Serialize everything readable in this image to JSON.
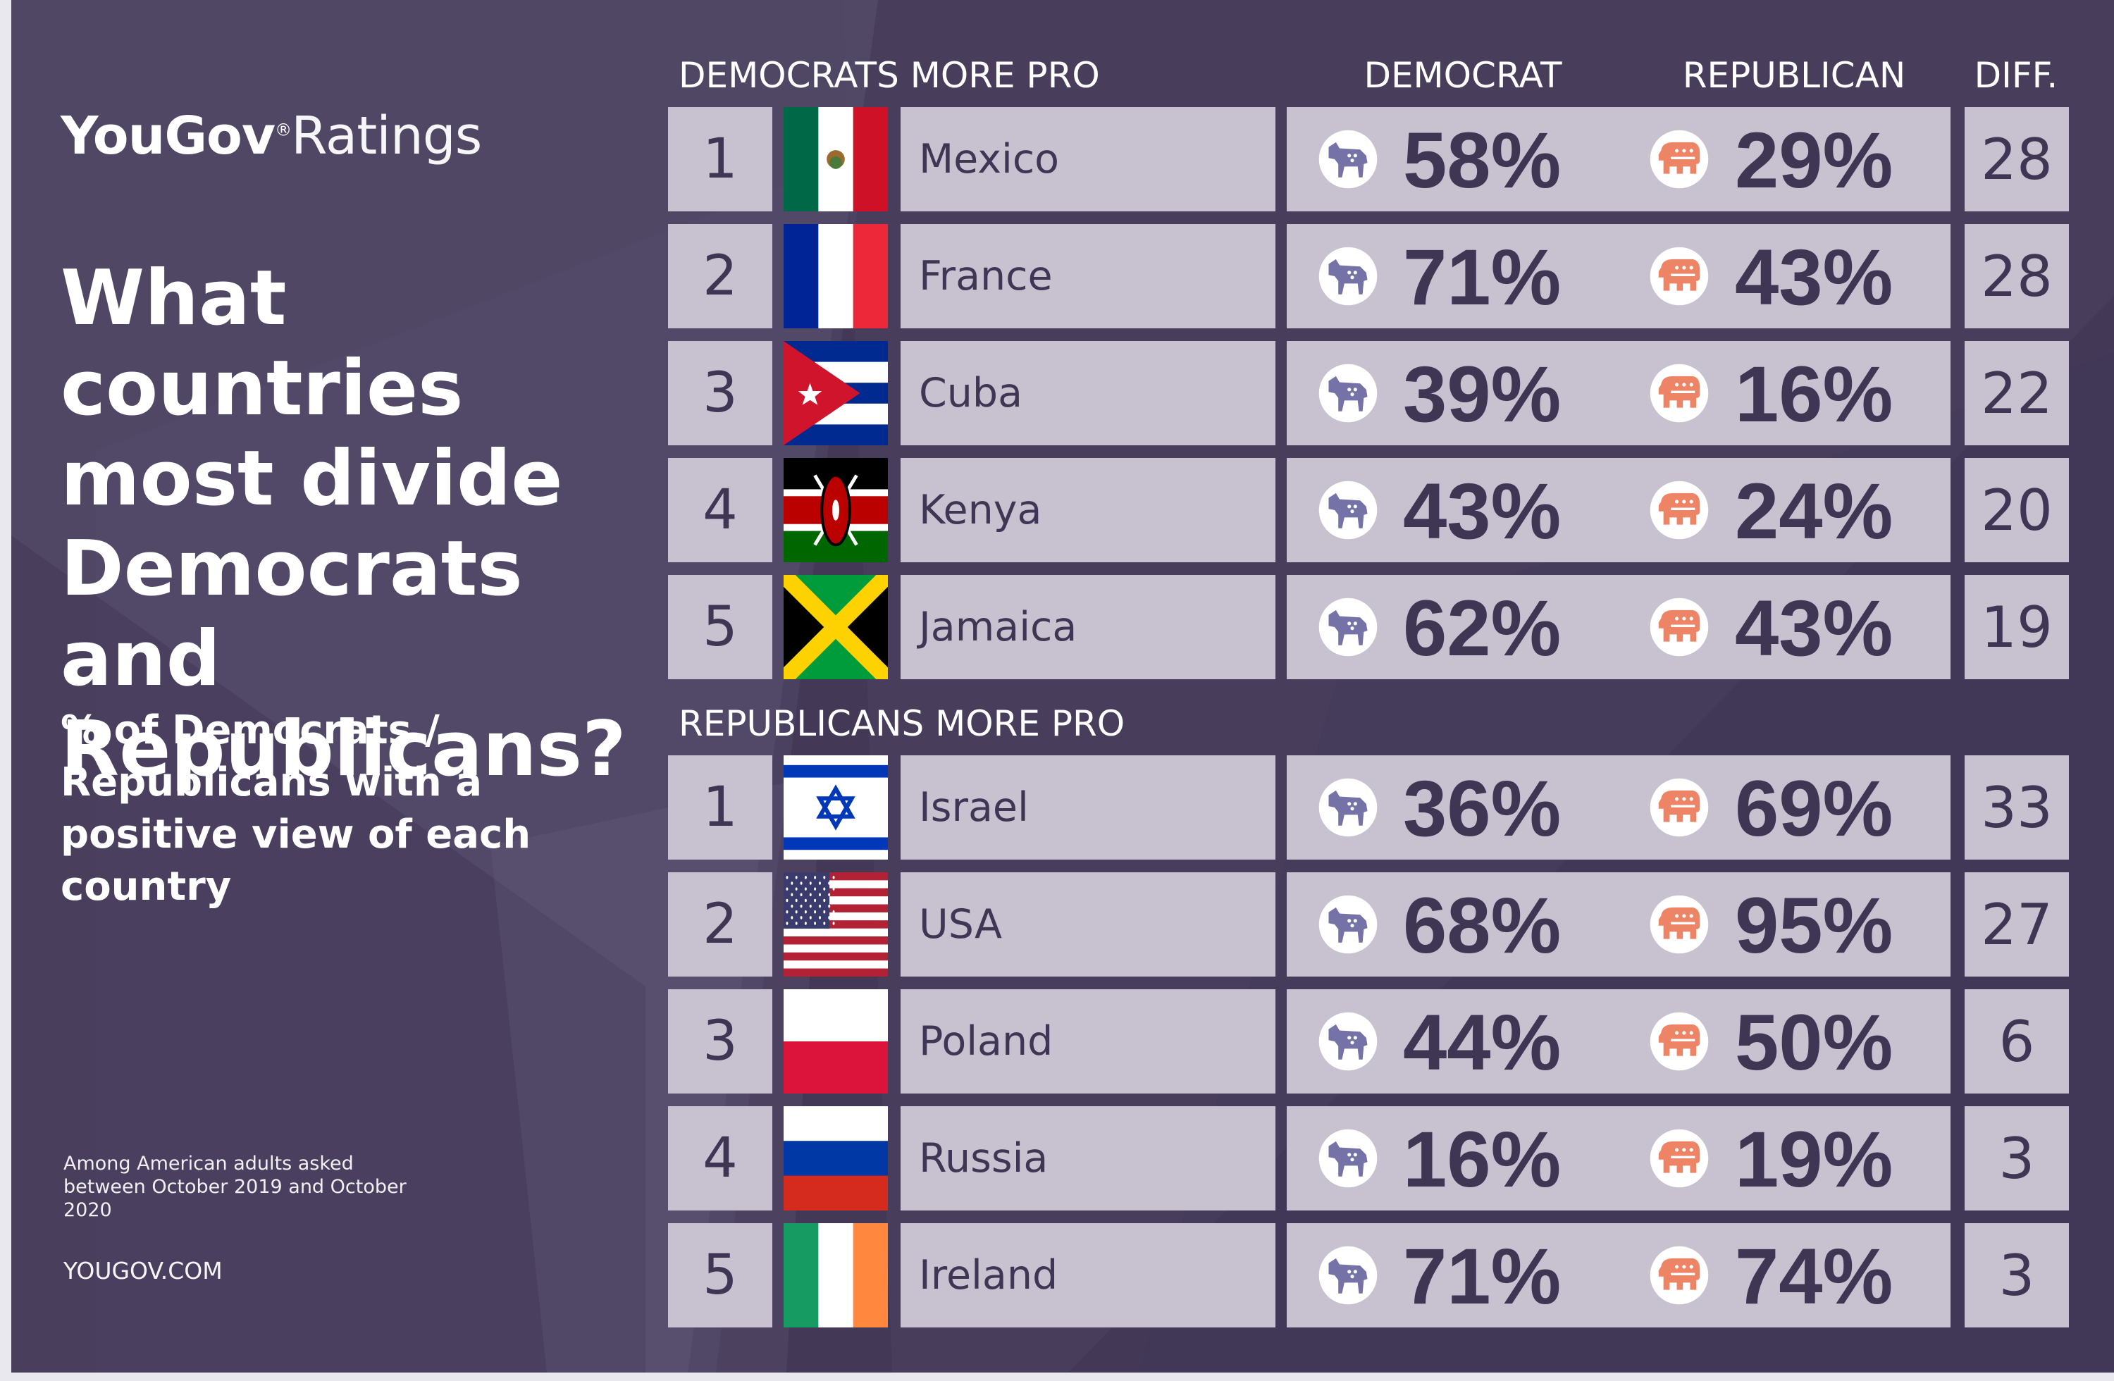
{
  "brand": {
    "name": "YouGov",
    "product": "Ratings"
  },
  "title": "What countries most divide Democrats and Republicans?",
  "subtitle": "% of Democrats / Republicans with a positive view of each country",
  "note": "Among American adults asked between October 2019 and October 2020",
  "website": "YOUGOV.COM",
  "columns": {
    "democrat": "DEMOCRAT",
    "republican": "REPUBLICAN",
    "diff": "DIFF."
  },
  "icons": {
    "democrat": "donkey-icon",
    "republican": "elephant-icon"
  },
  "colors": {
    "background": "#433957",
    "cell": "#c8c1d0",
    "text_dark": "#3f3654",
    "democrat": "#7572a8",
    "republican": "#ee8466"
  },
  "sections": [
    {
      "heading": "DEMOCRATS MORE PRO",
      "rows": [
        {
          "rank": "1",
          "country": "Mexico",
          "flag": "mexico-flag-icon",
          "democrat": "58%",
          "republican": "29%",
          "diff": "28"
        },
        {
          "rank": "2",
          "country": "France",
          "flag": "france-flag-icon",
          "democrat": "71%",
          "republican": "43%",
          "diff": "28"
        },
        {
          "rank": "3",
          "country": "Cuba",
          "flag": "cuba-flag-icon",
          "democrat": "39%",
          "republican": "16%",
          "diff": "22"
        },
        {
          "rank": "4",
          "country": "Kenya",
          "flag": "kenya-flag-icon",
          "democrat": "43%",
          "republican": "24%",
          "diff": "20"
        },
        {
          "rank": "5",
          "country": "Jamaica",
          "flag": "jamaica-flag-icon",
          "democrat": "62%",
          "republican": "43%",
          "diff": "19"
        }
      ]
    },
    {
      "heading": "REPUBLICANS MORE PRO",
      "rows": [
        {
          "rank": "1",
          "country": "Israel",
          "flag": "israel-flag-icon",
          "democrat": "36%",
          "republican": "69%",
          "diff": "33"
        },
        {
          "rank": "2",
          "country": "USA",
          "flag": "usa-flag-icon",
          "democrat": "68%",
          "republican": "95%",
          "diff": "27"
        },
        {
          "rank": "3",
          "country": "Poland",
          "flag": "poland-flag-icon",
          "democrat": "44%",
          "republican": "50%",
          "diff": "6"
        },
        {
          "rank": "4",
          "country": "Russia",
          "flag": "russia-flag-icon",
          "democrat": "16%",
          "republican": "19%",
          "diff": "3"
        },
        {
          "rank": "5",
          "country": "Ireland",
          "flag": "ireland-flag-icon",
          "democrat": "71%",
          "republican": "74%",
          "diff": "3"
        }
      ]
    }
  ]
}
